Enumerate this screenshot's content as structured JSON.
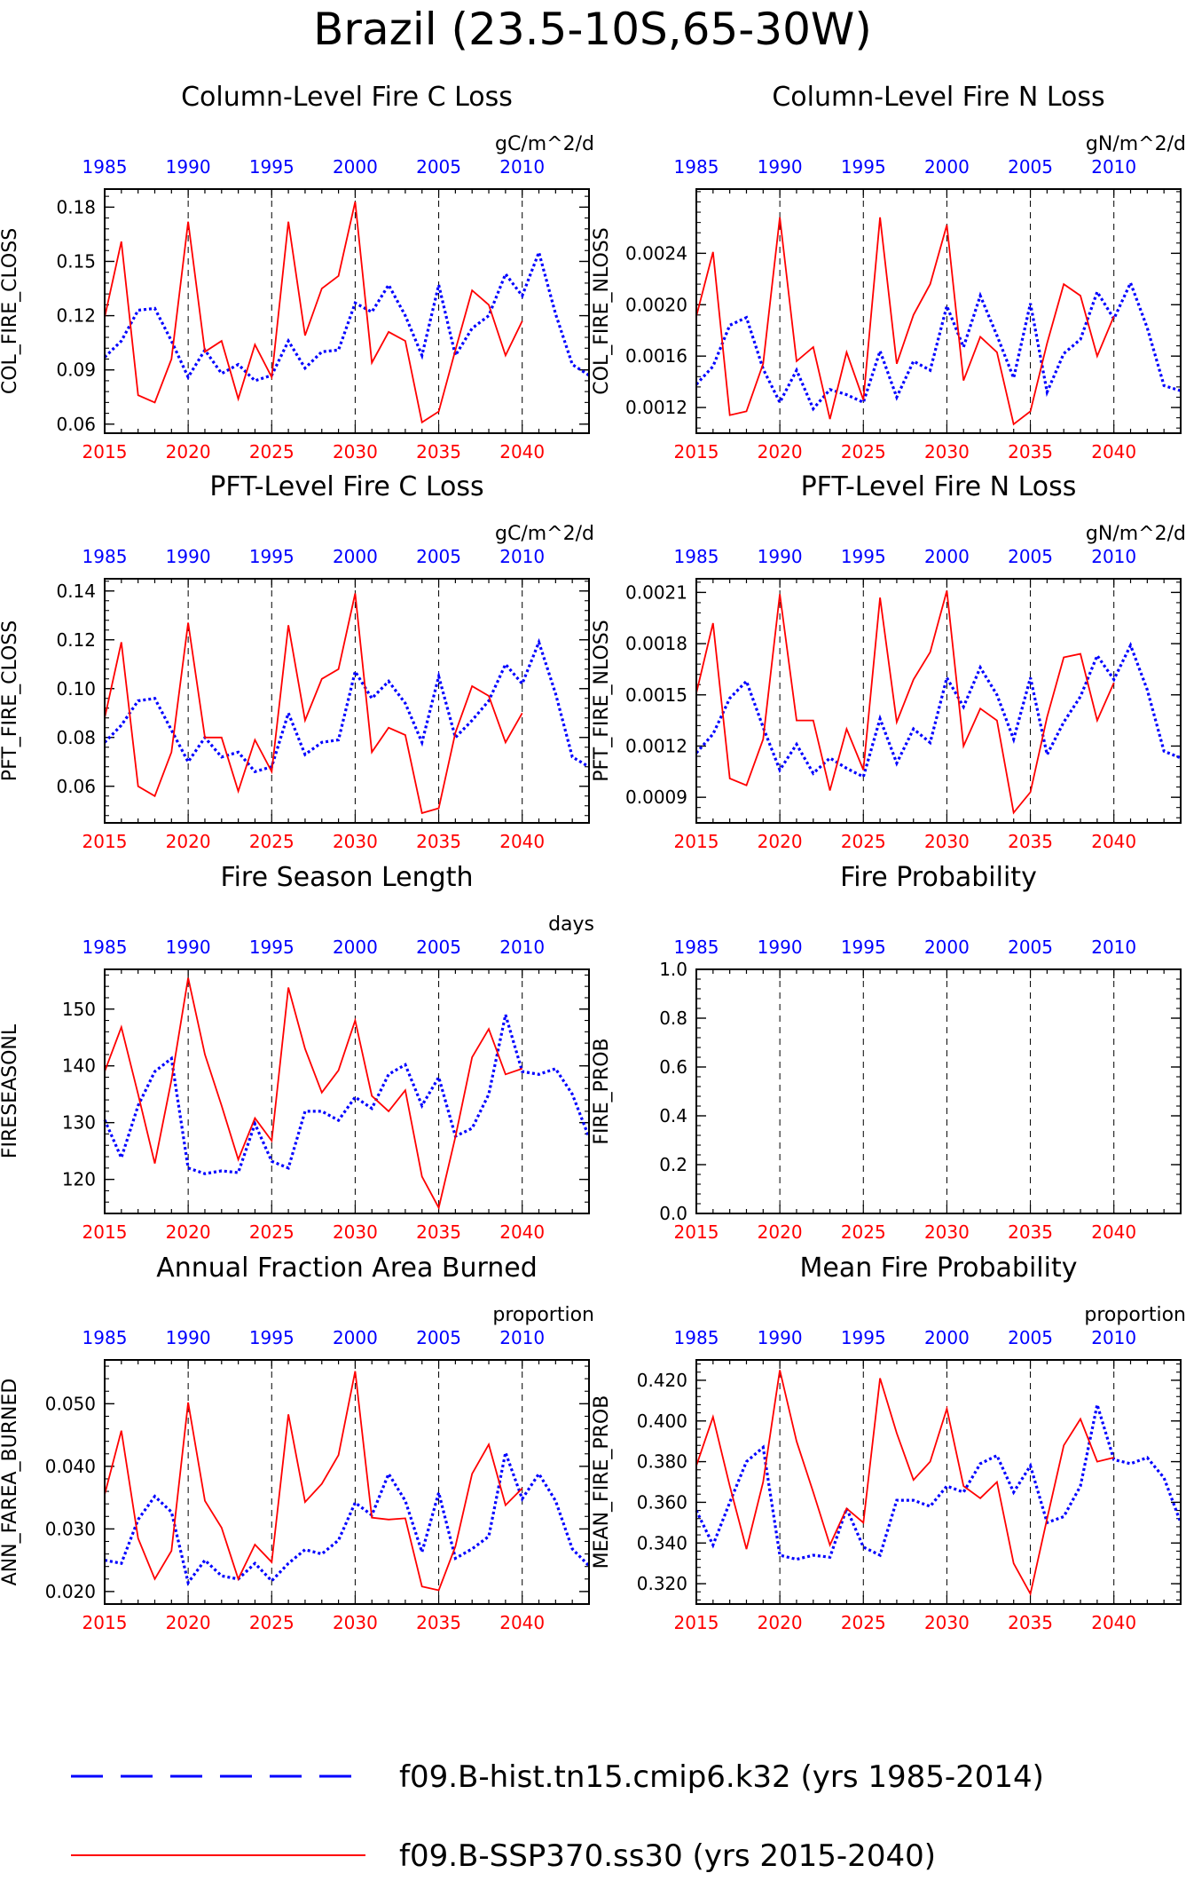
{
  "page_title": "Brazil (23.5-10S,65-30W)",
  "legend": {
    "hist_label": "f09.B-hist.tn15.cmip6.k32 (yrs 1985-2014)",
    "ssp_label": "f09.B-SSP370.ss30 (yrs 2015-2040)",
    "hist_color": "#0000ff",
    "ssp_color": "#ff0000"
  },
  "colors": {
    "hist": "#0000ff",
    "ssp": "#ff0000",
    "axis": "#000000"
  },
  "chart_data": [
    {
      "type": "line",
      "title": "Column-Level Fire C Loss",
      "ylabel": "COL_FIRE_CLOSS",
      "units": "gC/m^2/d",
      "ylim": [
        0.055,
        0.19
      ],
      "yticks": [
        "0.06",
        "0.09",
        "0.12",
        "0.15",
        "0.18"
      ],
      "hist": [
        0.097,
        0.106,
        0.123,
        0.124,
        0.106,
        0.086,
        0.101,
        0.088,
        0.093,
        0.084,
        0.087,
        0.106,
        0.091,
        0.1,
        0.101,
        0.127,
        0.122,
        0.137,
        0.12,
        0.098,
        0.137,
        0.098,
        0.113,
        0.12,
        0.143,
        0.131,
        0.155,
        0.121,
        0.093,
        0.087
      ],
      "ssp": [
        0.119,
        0.161,
        0.076,
        0.072,
        0.096,
        0.172,
        0.1,
        0.106,
        0.074,
        0.104,
        0.086,
        0.172,
        0.109,
        0.135,
        0.142,
        0.183,
        0.094,
        0.111,
        0.106,
        0.061,
        0.067,
        0.101,
        0.134,
        0.126,
        0.098,
        0.117
      ]
    },
    {
      "type": "line",
      "title": "Column-Level Fire N Loss",
      "ylabel": "COL_FIRE_NLOSS",
      "units": "gN/m^2/d",
      "ylim": [
        0.001,
        0.0029
      ],
      "yticks": [
        "0.0012",
        "0.0016",
        "0.0020",
        "0.0024"
      ],
      "hist": [
        0.00138,
        0.00152,
        0.00184,
        0.0019,
        0.0015,
        0.00124,
        0.00149,
        0.00119,
        0.00134,
        0.0013,
        0.00124,
        0.00164,
        0.00128,
        0.00156,
        0.00149,
        0.00199,
        0.00167,
        0.00207,
        0.00176,
        0.00143,
        0.00201,
        0.00132,
        0.00162,
        0.00173,
        0.0021,
        0.00189,
        0.00217,
        0.00182,
        0.00137,
        0.00133
      ],
      "ssp": [
        0.00191,
        0.00241,
        0.00114,
        0.00117,
        0.00154,
        0.00268,
        0.00156,
        0.00167,
        0.00111,
        0.00163,
        0.00126,
        0.00268,
        0.00154,
        0.00192,
        0.00216,
        0.00262,
        0.00141,
        0.00175,
        0.00163,
        0.00107,
        0.00117,
        0.0017,
        0.00216,
        0.00207,
        0.0016,
        0.00191
      ]
    },
    {
      "type": "line",
      "title": "PFT-Level Fire C Loss",
      "ylabel": "PFT_FIRE_CLOSS",
      "units": "gC/m^2/d",
      "ylim": [
        0.045,
        0.145
      ],
      "yticks": [
        "0.06",
        "0.08",
        "0.10",
        "0.12",
        "0.14"
      ],
      "hist": [
        0.078,
        0.085,
        0.095,
        0.096,
        0.083,
        0.07,
        0.08,
        0.072,
        0.074,
        0.066,
        0.068,
        0.09,
        0.073,
        0.078,
        0.079,
        0.107,
        0.096,
        0.103,
        0.094,
        0.078,
        0.105,
        0.08,
        0.087,
        0.095,
        0.11,
        0.102,
        0.119,
        0.098,
        0.072,
        0.068
      ],
      "ssp": [
        0.088,
        0.119,
        0.06,
        0.056,
        0.074,
        0.127,
        0.08,
        0.08,
        0.058,
        0.079,
        0.066,
        0.126,
        0.087,
        0.104,
        0.108,
        0.139,
        0.074,
        0.084,
        0.081,
        0.049,
        0.051,
        0.082,
        0.101,
        0.097,
        0.078,
        0.09
      ]
    },
    {
      "type": "line",
      "title": "PFT-Level Fire N Loss",
      "ylabel": "PFT_FIRE_NLOSS",
      "units": "gN/m^2/d",
      "ylim": [
        0.00075,
        0.00218
      ],
      "yticks": [
        "0.0009",
        "0.0012",
        "0.0015",
        "0.0018",
        "0.0021"
      ],
      "hist": [
        0.00116,
        0.00127,
        0.00148,
        0.00158,
        0.00131,
        0.00106,
        0.00121,
        0.00104,
        0.00113,
        0.00107,
        0.00102,
        0.00136,
        0.0011,
        0.0013,
        0.00122,
        0.0016,
        0.00143,
        0.00166,
        0.0015,
        0.00124,
        0.0016,
        0.00115,
        0.00134,
        0.00149,
        0.00173,
        0.00159,
        0.00179,
        0.00153,
        0.00117,
        0.00113
      ],
      "ssp": [
        0.00151,
        0.00192,
        0.00101,
        0.00097,
        0.00124,
        0.00209,
        0.00135,
        0.00135,
        0.00094,
        0.0013,
        0.00106,
        0.00207,
        0.00134,
        0.00159,
        0.00175,
        0.00211,
        0.0012,
        0.00142,
        0.00135,
        0.00081,
        0.00093,
        0.00137,
        0.00172,
        0.00174,
        0.00135,
        0.00157
      ]
    },
    {
      "type": "line",
      "title": "Fire Season Length",
      "ylabel": "FIRESEASONL",
      "units": "days",
      "ylim": [
        114,
        157
      ],
      "yticks": [
        "120",
        "130",
        "140",
        "150"
      ],
      "hist": [
        130.5,
        123.8,
        133,
        139,
        141.3,
        122,
        121,
        121.5,
        121.2,
        129.8,
        123.2,
        122,
        132,
        132,
        130.4,
        134.5,
        132.5,
        138.5,
        140.2,
        133,
        138,
        127.6,
        129,
        135,
        149,
        139,
        138.5,
        139.5,
        135,
        127.4
      ],
      "ssp": [
        139,
        146.8,
        135,
        122.8,
        137.5,
        155.5,
        142,
        133,
        123.5,
        130.8,
        126.8,
        153.8,
        143,
        135.3,
        139.2,
        148,
        134.7,
        132,
        135.7,
        120.5,
        115,
        127.5,
        141.5,
        146.5,
        138.5,
        139.5
      ]
    },
    {
      "type": "line",
      "title": "Fire Probability",
      "ylabel": "FIRE_PROB",
      "units": "",
      "ylim": [
        0,
        1
      ],
      "yticks": [
        "0.0",
        "0.2",
        "0.4",
        "0.6",
        "0.8",
        "1.0"
      ],
      "hist": [],
      "ssp": []
    },
    {
      "type": "line",
      "title": "Annual Fraction Area Burned",
      "ylabel": "ANN_FAREA_BURNED",
      "units": "proportion",
      "ylim": [
        0.018,
        0.057
      ],
      "yticks": [
        "0.020",
        "0.030",
        "0.040",
        "0.050"
      ],
      "hist": [
        0.025,
        0.0245,
        0.0315,
        0.0352,
        0.0327,
        0.0214,
        0.025,
        0.0225,
        0.022,
        0.0245,
        0.0217,
        0.0245,
        0.0267,
        0.026,
        0.0282,
        0.0342,
        0.0322,
        0.0388,
        0.0345,
        0.0263,
        0.0358,
        0.0253,
        0.0268,
        0.0288,
        0.0422,
        0.0348,
        0.0388,
        0.0345,
        0.0268,
        0.0241
      ],
      "ssp": [
        0.0355,
        0.0457,
        0.0285,
        0.022,
        0.0265,
        0.0502,
        0.0345,
        0.0302,
        0.022,
        0.0275,
        0.0247,
        0.0483,
        0.0343,
        0.0372,
        0.0418,
        0.0552,
        0.0318,
        0.0315,
        0.0317,
        0.0208,
        0.0202,
        0.0272,
        0.0388,
        0.0435,
        0.0338,
        0.0365
      ]
    },
    {
      "type": "line",
      "title": "Mean Fire Probability",
      "ylabel": "MEAN_FIRE_PROB",
      "units": "proportion",
      "ylim": [
        0.31,
        0.43
      ],
      "yticks": [
        "0.320",
        "0.340",
        "0.360",
        "0.380",
        "0.400",
        "0.420"
      ],
      "hist": [
        0.356,
        0.339,
        0.36,
        0.38,
        0.387,
        0.334,
        0.332,
        0.334,
        0.333,
        0.357,
        0.338,
        0.334,
        0.361,
        0.361,
        0.358,
        0.368,
        0.365,
        0.379,
        0.383,
        0.365,
        0.378,
        0.35,
        0.353,
        0.368,
        0.408,
        0.381,
        0.379,
        0.382,
        0.372,
        0.35
      ],
      "ssp": [
        0.378,
        0.402,
        0.368,
        0.337,
        0.37,
        0.425,
        0.39,
        0.365,
        0.339,
        0.357,
        0.35,
        0.421,
        0.394,
        0.371,
        0.38,
        0.406,
        0.368,
        0.362,
        0.37,
        0.33,
        0.315,
        0.352,
        0.388,
        0.401,
        0.38,
        0.382
      ]
    }
  ],
  "xaxis": {
    "hist_start": 1985,
    "ssp_start": 2015,
    "hist_ticks": [
      "1985",
      "1990",
      "1995",
      "2000",
      "2005",
      "2010"
    ],
    "ssp_ticks": [
      "2015",
      "2020",
      "2025",
      "2030",
      "2035",
      "2040"
    ]
  }
}
